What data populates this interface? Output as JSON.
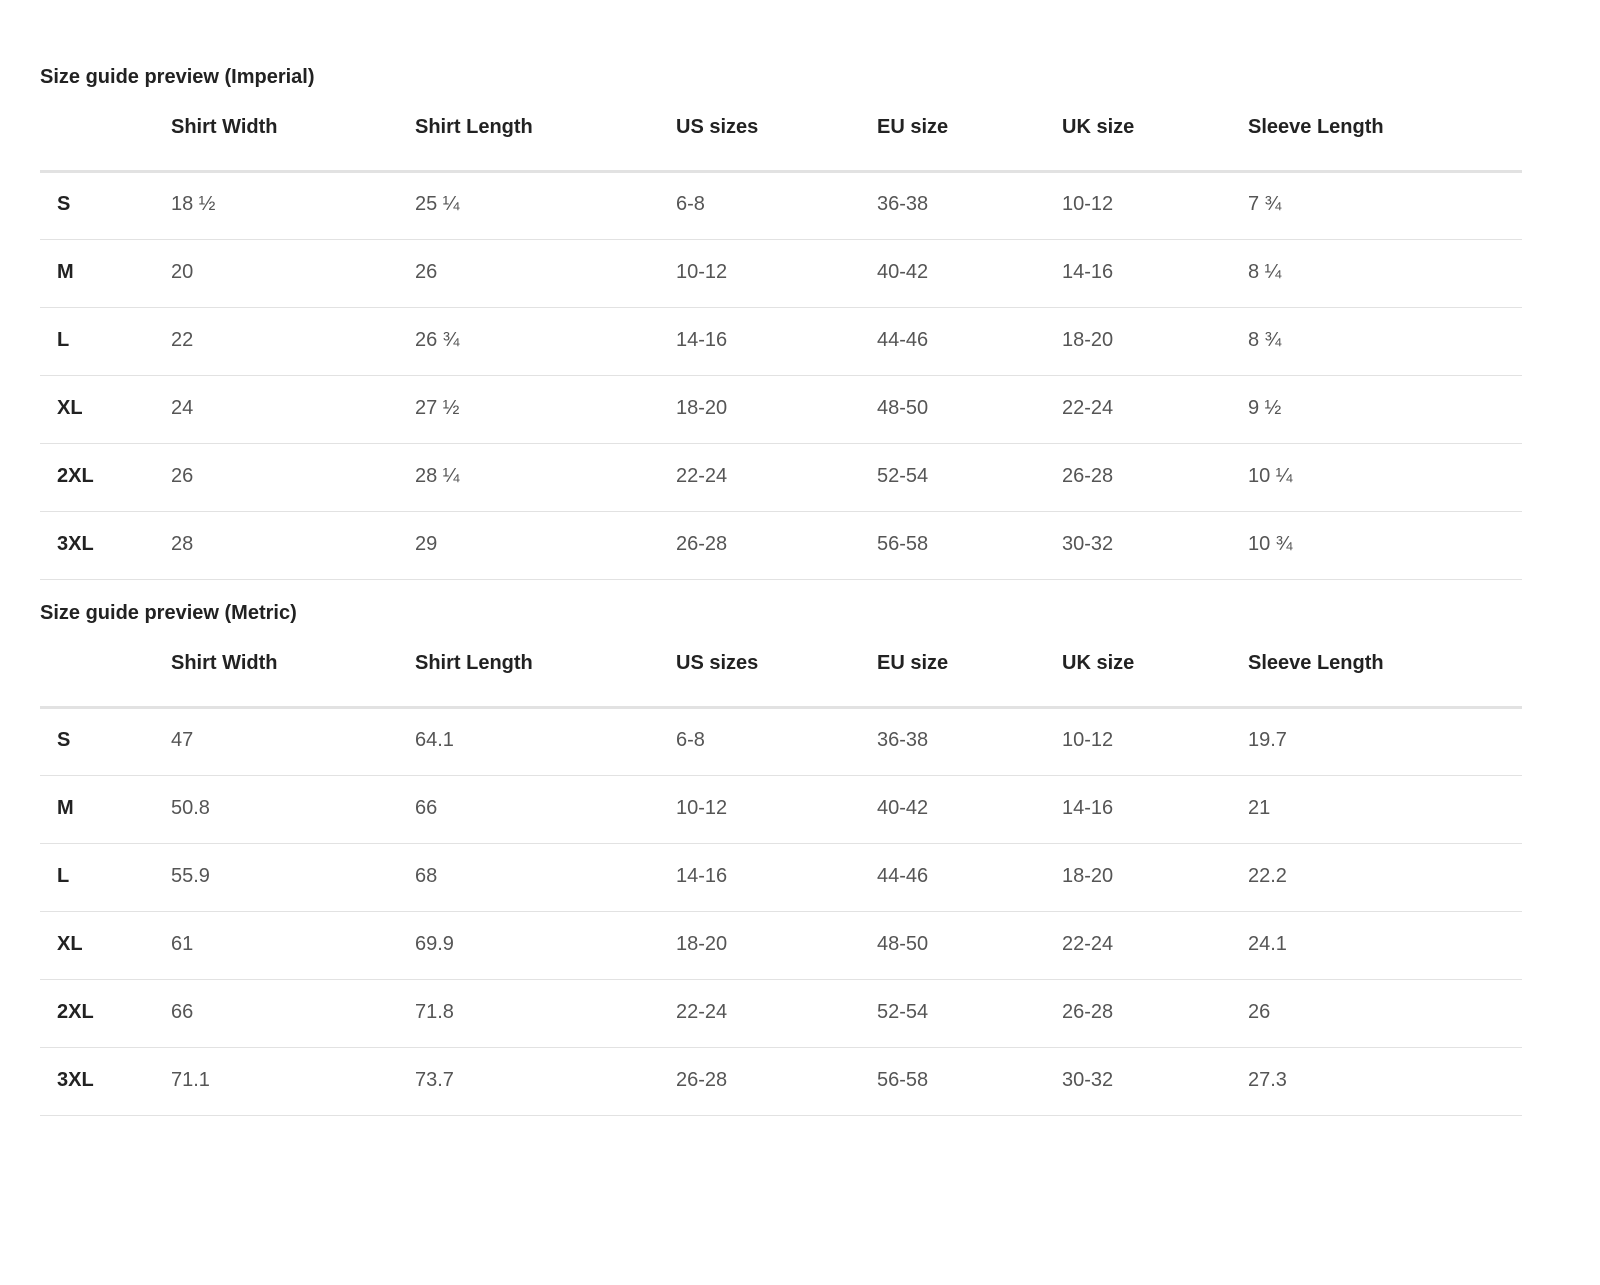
{
  "tables": [
    {
      "title": "Size guide preview (Imperial)",
      "columns": [
        "Shirt Width",
        "Shirt Length",
        "US sizes",
        "EU size",
        "UK size",
        "Sleeve Length"
      ],
      "rows": [
        {
          "size": "S",
          "cells": [
            "18 ½",
            "25 ¼",
            "6-8",
            "36-38",
            "10-12",
            "7 ¾"
          ]
        },
        {
          "size": "M",
          "cells": [
            "20",
            "26",
            "10-12",
            "40-42",
            "14-16",
            "8 ¼"
          ]
        },
        {
          "size": "L",
          "cells": [
            "22",
            "26 ¾",
            "14-16",
            "44-46",
            "18-20",
            "8 ¾"
          ]
        },
        {
          "size": "XL",
          "cells": [
            "24",
            "27 ½",
            "18-20",
            "48-50",
            "22-24",
            "9 ½"
          ]
        },
        {
          "size": "2XL",
          "cells": [
            "26",
            "28 ¼",
            "22-24",
            "52-54",
            "26-28",
            "10 ¼"
          ]
        },
        {
          "size": "3XL",
          "cells": [
            "28",
            "29",
            "26-28",
            "56-58",
            "30-32",
            "10 ¾"
          ]
        }
      ]
    },
    {
      "title": "Size guide preview (Metric)",
      "columns": [
        "Shirt Width",
        "Shirt Length",
        "US sizes",
        "EU size",
        "UK size",
        "Sleeve Length"
      ],
      "rows": [
        {
          "size": "S",
          "cells": [
            "47",
            "64.1",
            "6-8",
            "36-38",
            "10-12",
            "19.7"
          ]
        },
        {
          "size": "M",
          "cells": [
            "50.8",
            "66",
            "10-12",
            "40-42",
            "14-16",
            "21"
          ]
        },
        {
          "size": "L",
          "cells": [
            "55.9",
            "68",
            "14-16",
            "44-46",
            "18-20",
            "22.2"
          ]
        },
        {
          "size": "XL",
          "cells": [
            "61",
            "69.9",
            "18-20",
            "48-50",
            "22-24",
            "24.1"
          ]
        },
        {
          "size": "2XL",
          "cells": [
            "66",
            "71.8",
            "22-24",
            "52-54",
            "26-28",
            "26"
          ]
        },
        {
          "size": "3XL",
          "cells": [
            "71.1",
            "73.7",
            "26-28",
            "56-58",
            "30-32",
            "27.3"
          ]
        }
      ]
    }
  ]
}
